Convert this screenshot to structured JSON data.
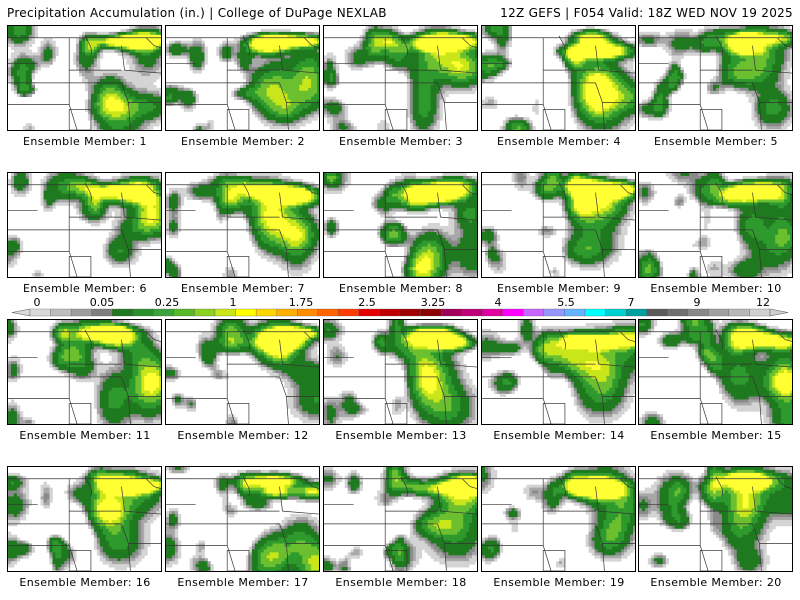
{
  "header": {
    "left_title": "Precipitation Accumulation (in.) | College of DuPage NEXLAB",
    "right_title": "12Z GEFS | F054 Valid: 18Z WED NOV 19 2025"
  },
  "colorbar": {
    "labels": [
      "0",
      "0.05",
      "0.25",
      "1",
      "1.75",
      "2.5",
      "3.25",
      "4",
      "5.5",
      "7",
      "9",
      "12"
    ],
    "colors": [
      "#d9d9d9",
      "#bdbdbd",
      "#9e9e9e",
      "#7f7f7f",
      "#1e7a1e",
      "#2a8f2a",
      "#3aa33a",
      "#55b829",
      "#8ad21f",
      "#c8e61a",
      "#ffff00",
      "#ffd700",
      "#ffb000",
      "#ff8c00",
      "#ff6400",
      "#ff3c00",
      "#e60000",
      "#c00000",
      "#a00000",
      "#8b0000",
      "#a0005a",
      "#c0007a",
      "#e000a0",
      "#ff00ff",
      "#c864ff",
      "#9696ff",
      "#64b4ff",
      "#00ffff",
      "#00d2d2",
      "#00a0a0",
      "#5a5a5a",
      "#707070",
      "#888888",
      "#a0a0a0",
      "#b8b8b8",
      "#d0d0d0"
    ]
  },
  "panels": [
    {
      "caption": "Ensemble Member: 1",
      "seed": 11
    },
    {
      "caption": "Ensemble Member: 2",
      "seed": 23
    },
    {
      "caption": "Ensemble Member: 3",
      "seed": 37
    },
    {
      "caption": "Ensemble Member: 4",
      "seed": 41
    },
    {
      "caption": "Ensemble Member: 5",
      "seed": 53
    },
    {
      "caption": "Ensemble Member: 6",
      "seed": 67
    },
    {
      "caption": "Ensemble Member: 7",
      "seed": 71
    },
    {
      "caption": "Ensemble Member: 8",
      "seed": 83
    },
    {
      "caption": "Ensemble Member: 9",
      "seed": 97
    },
    {
      "caption": "Ensemble Member: 10",
      "seed": 101
    },
    {
      "caption": "Ensemble Member: 11",
      "seed": 113
    },
    {
      "caption": "Ensemble Member: 12",
      "seed": 127
    },
    {
      "caption": "Ensemble Member: 13",
      "seed": 131
    },
    {
      "caption": "Ensemble Member: 14",
      "seed": 149
    },
    {
      "caption": "Ensemble Member: 15",
      "seed": 151
    },
    {
      "caption": "Ensemble Member: 16",
      "seed": 163
    },
    {
      "caption": "Ensemble Member: 17",
      "seed": 173
    },
    {
      "caption": "Ensemble Member: 18",
      "seed": 181
    },
    {
      "caption": "Ensemble Member: 19",
      "seed": 191
    },
    {
      "caption": "Ensemble Member: 20",
      "seed": 199
    }
  ],
  "palette": {
    "gray_light": "#d4d4d4",
    "gray_mid": "#a8a8a8",
    "gray_dark": "#8a8a8a",
    "green_dark": "#1f7a1f",
    "green_mid": "#2e9a2e",
    "green_light": "#6cc030",
    "yellow_green": "#c8e61a",
    "yellow": "#ffff33",
    "white": "#ffffff"
  }
}
